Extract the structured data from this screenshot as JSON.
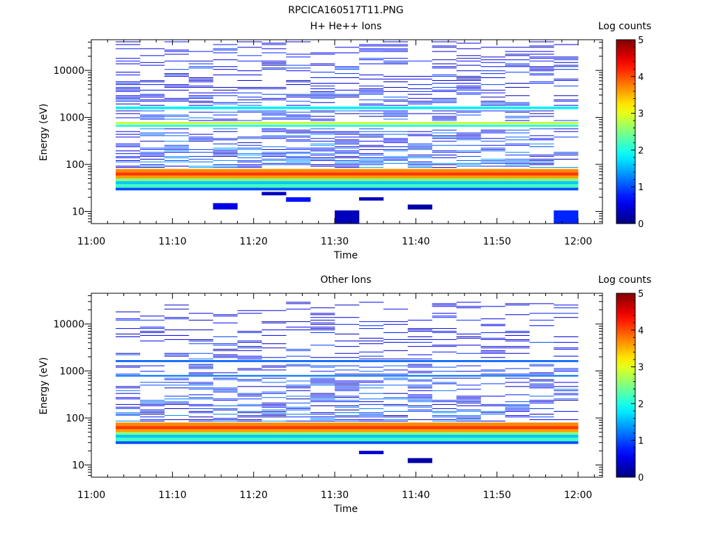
{
  "figure": {
    "filename": "RPCICA160517T11.PNG"
  },
  "chart_data": [
    {
      "type": "heatmap",
      "title": "H+ He++ Ions",
      "xlabel": "Time",
      "ylabel": "Energy (eV)",
      "y_scale": "log",
      "ylim": [
        5.5,
        45000
      ],
      "xlim": [
        "11:00",
        "12:03"
      ],
      "x_ticks": [
        "11:00",
        "11:10",
        "11:20",
        "11:30",
        "11:40",
        "11:50",
        "12:00"
      ],
      "y_ticks": [
        10,
        100,
        1000,
        10000
      ],
      "y_tick_labels": [
        "10",
        "100",
        "1000",
        "10000"
      ],
      "colorbar": {
        "label": "Log counts",
        "range": [
          0,
          5
        ],
        "ticks": [
          "0",
          "1",
          "2",
          "3",
          "4",
          "5"
        ],
        "colormap": "jet"
      },
      "time_bins": [
        "11:03",
        "11:06",
        "11:09",
        "11:12",
        "11:15",
        "11:18",
        "11:21",
        "11:24",
        "11:27",
        "11:30",
        "11:33",
        "11:36",
        "11:39",
        "11:42",
        "11:45",
        "11:48",
        "11:51",
        "11:54",
        "11:57"
      ],
      "time_bin_end": "12:00",
      "bands": [
        {
          "e_lo": 28,
          "e_hi": 32,
          "value": 1.0
        },
        {
          "e_lo": 32,
          "e_hi": 38,
          "value": 2.2
        },
        {
          "e_lo": 38,
          "e_hi": 44,
          "value": 1.6
        },
        {
          "e_lo": 44,
          "e_hi": 50,
          "value": 2.5
        },
        {
          "e_lo": 50,
          "e_hi": 58,
          "value": 3.6
        },
        {
          "e_lo": 58,
          "e_hi": 68,
          "value": 4.1
        },
        {
          "e_lo": 68,
          "e_hi": 80,
          "value": 3.7
        },
        {
          "e_lo": 630,
          "e_hi": 700,
          "value": 2.1
        },
        {
          "e_lo": 720,
          "e_hi": 800,
          "value": 2.8
        },
        {
          "e_lo": 1500,
          "e_hi": 1700,
          "value": 1.8
        }
      ],
      "sparse": {
        "e_min": 85,
        "e_max": 42000,
        "v_min": 0.2,
        "v_max": 1.5,
        "density_low": 0.6,
        "density_high": 0.28,
        "seed": 11
      },
      "isolated": [
        {
          "t_from": "11:15",
          "t_to": "11:18",
          "e_lo": 11,
          "e_hi": 15,
          "value": 0.5
        },
        {
          "t_from": "11:21",
          "t_to": "11:24",
          "e_lo": 22,
          "e_hi": 26,
          "value": 0.3
        },
        {
          "t_from": "11:24",
          "t_to": "11:27",
          "e_lo": 16,
          "e_hi": 20,
          "value": 0.7
        },
        {
          "t_from": "11:30",
          "t_to": "11:33",
          "e_lo": 5.5,
          "e_hi": 10.5,
          "value": 0.3
        },
        {
          "t_from": "11:33",
          "t_to": "11:36",
          "e_lo": 17,
          "e_hi": 20,
          "value": 0.3
        },
        {
          "t_from": "11:39",
          "t_to": "11:42",
          "e_lo": 11,
          "e_hi": 14,
          "value": 0.2
        },
        {
          "t_from": "11:57",
          "t_to": "12:00",
          "e_lo": 5.5,
          "e_hi": 10.5,
          "value": 0.8
        }
      ]
    },
    {
      "type": "heatmap",
      "title": "Other Ions",
      "xlabel": "Time",
      "ylabel": "Energy (eV)",
      "y_scale": "log",
      "ylim": [
        5.5,
        45000
      ],
      "xlim": [
        "11:00",
        "12:03"
      ],
      "x_ticks": [
        "11:00",
        "11:10",
        "11:20",
        "11:30",
        "11:40",
        "11:50",
        "12:00"
      ],
      "y_ticks": [
        10,
        100,
        1000,
        10000
      ],
      "y_tick_labels": [
        "10",
        "100",
        "1000",
        "10000"
      ],
      "colorbar": {
        "label": "Log counts",
        "range": [
          0,
          5
        ],
        "ticks": [
          "0",
          "1",
          "2",
          "3",
          "4",
          "5"
        ],
        "colormap": "jet"
      },
      "time_bins": [
        "11:03",
        "11:06",
        "11:09",
        "11:12",
        "11:15",
        "11:18",
        "11:21",
        "11:24",
        "11:27",
        "11:30",
        "11:33",
        "11:36",
        "11:39",
        "11:42",
        "11:45",
        "11:48",
        "11:51",
        "11:54",
        "11:57"
      ],
      "time_bin_end": "12:00",
      "bands": [
        {
          "e_lo": 28,
          "e_hi": 32,
          "value": 1.0
        },
        {
          "e_lo": 32,
          "e_hi": 38,
          "value": 2.2
        },
        {
          "e_lo": 38,
          "e_hi": 44,
          "value": 1.6
        },
        {
          "e_lo": 44,
          "e_hi": 50,
          "value": 2.5
        },
        {
          "e_lo": 50,
          "e_hi": 58,
          "value": 3.6
        },
        {
          "e_lo": 58,
          "e_hi": 68,
          "value": 4.1
        },
        {
          "e_lo": 68,
          "e_hi": 80,
          "value": 3.7
        },
        {
          "e_lo": 760,
          "e_hi": 820,
          "value": 1.2
        },
        {
          "e_lo": 1550,
          "e_hi": 1700,
          "value": 1.1
        }
      ],
      "sparse": {
        "e_min": 85,
        "e_max": 30000,
        "v_min": 0.2,
        "v_max": 1.4,
        "density_low": 0.55,
        "density_high": 0.15,
        "seed": 29
      },
      "isolated": [
        {
          "t_from": "11:33",
          "t_to": "11:36",
          "e_lo": 17,
          "e_hi": 20,
          "value": 0.4
        },
        {
          "t_from": "11:39",
          "t_to": "11:42",
          "e_lo": 11,
          "e_hi": 14,
          "value": 0.2
        }
      ]
    }
  ]
}
